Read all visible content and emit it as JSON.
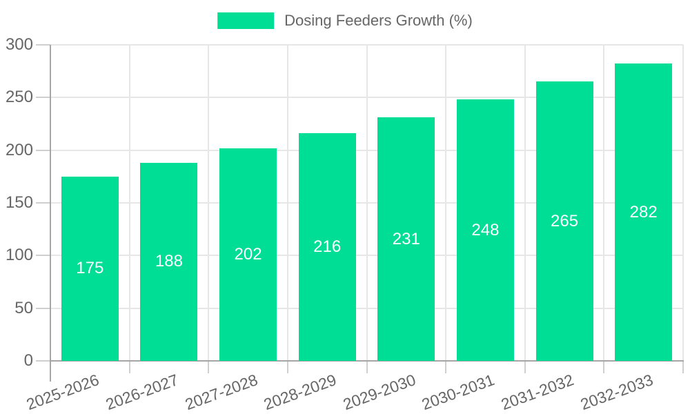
{
  "chart_data": {
    "type": "bar",
    "title": "Dosing Feeders Growth (%)",
    "categories": [
      "2025-2026",
      "2026-2027",
      "2027-2028",
      "2028-2029",
      "2029-2030",
      "2030-2031",
      "2031-2032",
      "2032-2033"
    ],
    "values": [
      175,
      188,
      202,
      216,
      231,
      248,
      265,
      282
    ],
    "xlabel": "",
    "ylabel": "",
    "ylim": [
      0,
      300
    ],
    "yticks": [
      0,
      50,
      100,
      150,
      200,
      250,
      300
    ],
    "grid": "on",
    "bar_value_labels_shown": true,
    "legend": {
      "label": "Dosing Feeders Growth (%)",
      "position": "top-center"
    },
    "colors": {
      "bar": "#00DE95",
      "bar_value_text": "#FFFFFF",
      "axis_text": "#666666",
      "grid_line": "#E6E6E6",
      "axis_line": "#A6A6A6",
      "tick_line": "#CFCFCF",
      "background": "#FFFFFF"
    }
  }
}
